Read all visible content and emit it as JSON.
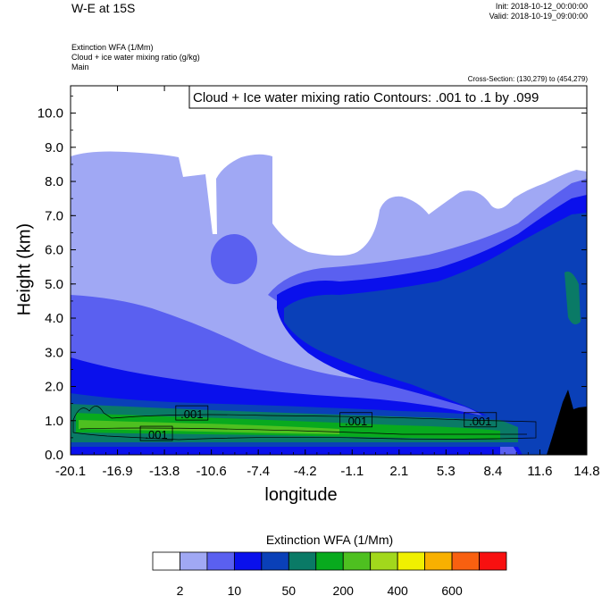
{
  "header": {
    "title": "W-E at 15S",
    "init": "Init: 2018-10-12_00:00:00",
    "valid": "Valid: 2018-10-19_09:00:00",
    "field1": "Extinction WFA   (1/Mm)",
    "field2": "Cloud + ice water mixing ratio   (g/kg)",
    "field3": "Main",
    "cross_section": "Cross-Section: (130,279) to (454,279)"
  },
  "chart_data": {
    "type": "heatmap",
    "title": "W-E at 15S",
    "xlabel": "longitude",
    "ylabel": "Height (km)",
    "annotation": "Cloud + Ice water mixing ratio Contours: .001 to .1 by .099",
    "x_ticks": [
      "-20.1",
      "-16.9",
      "-13.8",
      "-10.6",
      "-7.4",
      "-4.2",
      "-1.1",
      "2.1",
      "5.3",
      "8.4",
      "11.6",
      "14.8"
    ],
    "y_ticks": [
      "0.0",
      "1.0",
      "2.0",
      "3.0",
      "4.0",
      "5.0",
      "6.0",
      "7.0",
      "8.0",
      "9.0",
      "10.0"
    ],
    "xlim": [
      -20.1,
      14.8
    ],
    "ylim": [
      0.0,
      10.8
    ],
    "contour_labels": [
      {
        "text": ".001",
        "x": -11.9,
        "y": 1.2
      },
      {
        "text": ".001",
        "x": -14.3,
        "y": 0.6
      },
      {
        "text": ".001",
        "x": -0.8,
        "y": 1.0
      },
      {
        "text": ".001",
        "x": 7.6,
        "y": 1.0
      }
    ],
    "colorbar": {
      "title": "Extinction WFA  (1/Mm)",
      "colors": [
        "#ffffff",
        "#a0a8f4",
        "#5a60f0",
        "#0a10ec",
        "#0a40b8",
        "#0a7a66",
        "#08aa1e",
        "#4ec020",
        "#a2d81c",
        "#f0f000",
        "#f8b000",
        "#f86010",
        "#f81010"
      ],
      "tick_labels": [
        "2",
        "10",
        "50",
        "200",
        "400",
        "600"
      ]
    }
  }
}
